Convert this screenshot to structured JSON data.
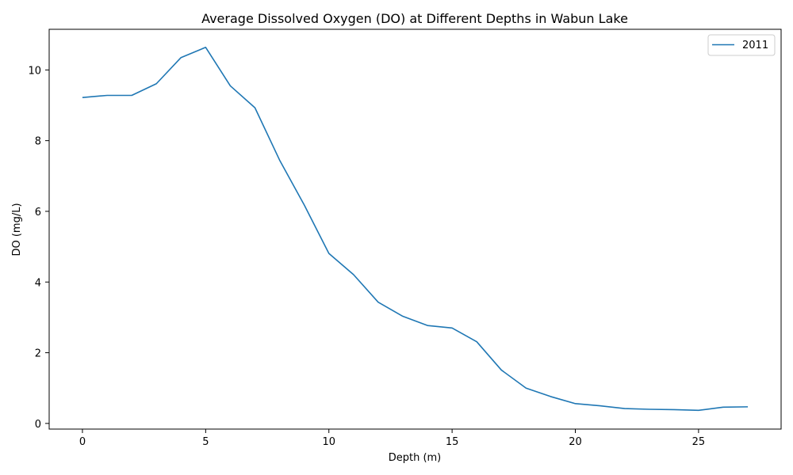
{
  "chart_data": {
    "type": "line",
    "title": "Average Dissolved Oxygen (DO) at Different Depths in Wabun Lake",
    "xlabel": "Depth (m)",
    "ylabel": "DO (mg/L)",
    "xlim": [
      -1.35,
      28.35
    ],
    "ylim": [
      -0.16,
      11.15
    ],
    "xticks": [
      0,
      5,
      10,
      15,
      20,
      25
    ],
    "yticks": [
      0,
      2,
      4,
      6,
      8,
      10
    ],
    "grid": false,
    "legend_position": "top-right",
    "series": [
      {
        "name": "2011",
        "color": "#1f77b4",
        "x": [
          0,
          1,
          2,
          3,
          4,
          5,
          6,
          7,
          8,
          9,
          10,
          11,
          12,
          13,
          14,
          15,
          16,
          17,
          18,
          19,
          20,
          21,
          22,
          23,
          24,
          25,
          26,
          27
        ],
        "y": [
          9.22,
          9.28,
          9.28,
          9.61,
          10.35,
          10.64,
          9.55,
          8.93,
          7.45,
          6.18,
          4.81,
          4.21,
          3.43,
          3.03,
          2.77,
          2.7,
          2.31,
          1.51,
          1.0,
          0.76,
          0.56,
          0.5,
          0.42,
          0.4,
          0.39,
          0.37,
          0.46,
          0.47
        ]
      }
    ]
  }
}
